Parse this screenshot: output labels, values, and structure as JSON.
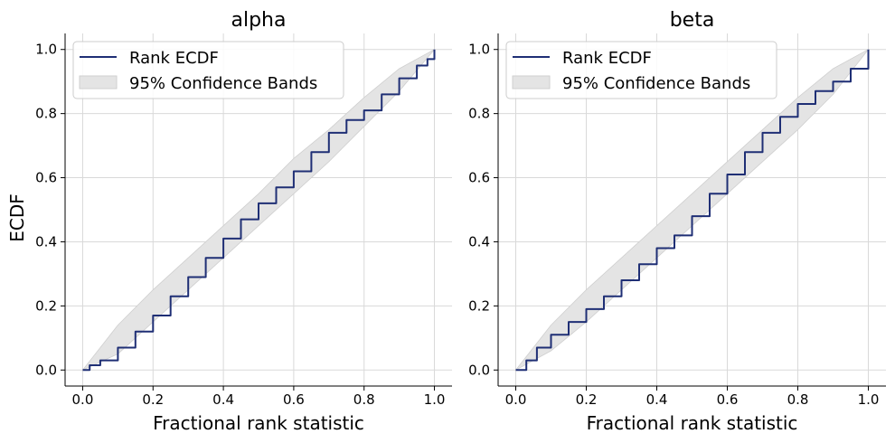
{
  "figure": {
    "ylabel": "ECDF"
  },
  "legend": {
    "line_label": "Rank ECDF",
    "band_label": "95% Confidence Bands"
  },
  "colors": {
    "line": "#1f2f75",
    "band_fill": "#e4e4e4",
    "band_edge": "#cfcfcf",
    "grid": "#d9d9d9",
    "axis": "#000000"
  },
  "chart_data": [
    {
      "type": "line",
      "title": "alpha",
      "xlabel": "Fractional rank statistic",
      "ylabel": "ECDF",
      "xlim": [
        -0.05,
        1.05
      ],
      "ylim": [
        -0.05,
        1.05
      ],
      "xticks": [
        "0.0",
        "0.2",
        "0.4",
        "0.6",
        "0.8",
        "1.0"
      ],
      "yticks": [
        "0.0",
        "0.2",
        "0.4",
        "0.6",
        "0.8",
        "1.0"
      ],
      "grid": true,
      "legend_position": "upper-left",
      "band": {
        "name": "95% Confidence Bands",
        "x": [
          0.0,
          0.1,
          0.2,
          0.3,
          0.4,
          0.5,
          0.6,
          0.7,
          0.8,
          0.9,
          1.0
        ],
        "lower": [
          0.0,
          0.05,
          0.15,
          0.25,
          0.35,
          0.45,
          0.55,
          0.65,
          0.76,
          0.87,
          1.0
        ],
        "upper": [
          0.0,
          0.14,
          0.25,
          0.35,
          0.45,
          0.55,
          0.66,
          0.75,
          0.85,
          0.94,
          1.0
        ]
      },
      "series": [
        {
          "name": "Rank ECDF",
          "x": [
            0.0,
            0.02,
            0.05,
            0.1,
            0.15,
            0.2,
            0.25,
            0.3,
            0.35,
            0.4,
            0.45,
            0.5,
            0.55,
            0.6,
            0.65,
            0.7,
            0.75,
            0.8,
            0.85,
            0.9,
            0.95,
            0.98,
            1.0
          ],
          "y": [
            0.0,
            0.015,
            0.03,
            0.07,
            0.12,
            0.17,
            0.23,
            0.29,
            0.35,
            0.41,
            0.47,
            0.52,
            0.57,
            0.62,
            0.68,
            0.74,
            0.78,
            0.81,
            0.86,
            0.91,
            0.95,
            0.97,
            1.0
          ]
        }
      ]
    },
    {
      "type": "line",
      "title": "beta",
      "xlabel": "Fractional rank statistic",
      "ylabel": "",
      "xlim": [
        -0.05,
        1.05
      ],
      "ylim": [
        -0.05,
        1.05
      ],
      "xticks": [
        "0.0",
        "0.2",
        "0.4",
        "0.6",
        "0.8",
        "1.0"
      ],
      "yticks": [
        "0.0",
        "0.2",
        "0.4",
        "0.6",
        "0.8",
        "1.0"
      ],
      "grid": true,
      "legend_position": "upper-left",
      "band": {
        "name": "95% Confidence Bands",
        "x": [
          0.0,
          0.1,
          0.2,
          0.3,
          0.4,
          0.5,
          0.6,
          0.7,
          0.8,
          0.9,
          1.0
        ],
        "lower": [
          0.0,
          0.06,
          0.15,
          0.25,
          0.35,
          0.45,
          0.55,
          0.65,
          0.75,
          0.86,
          1.0
        ],
        "upper": [
          0.0,
          0.14,
          0.25,
          0.35,
          0.45,
          0.55,
          0.65,
          0.75,
          0.85,
          0.94,
          1.0
        ]
      },
      "series": [
        {
          "name": "Rank ECDF",
          "x": [
            0.0,
            0.03,
            0.06,
            0.1,
            0.15,
            0.2,
            0.25,
            0.3,
            0.35,
            0.4,
            0.45,
            0.5,
            0.55,
            0.6,
            0.65,
            0.7,
            0.75,
            0.8,
            0.85,
            0.9,
            0.95,
            1.0
          ],
          "y": [
            0.0,
            0.03,
            0.07,
            0.11,
            0.15,
            0.19,
            0.23,
            0.28,
            0.33,
            0.38,
            0.42,
            0.48,
            0.55,
            0.61,
            0.68,
            0.74,
            0.79,
            0.83,
            0.87,
            0.9,
            0.94,
            1.0
          ]
        }
      ]
    }
  ]
}
